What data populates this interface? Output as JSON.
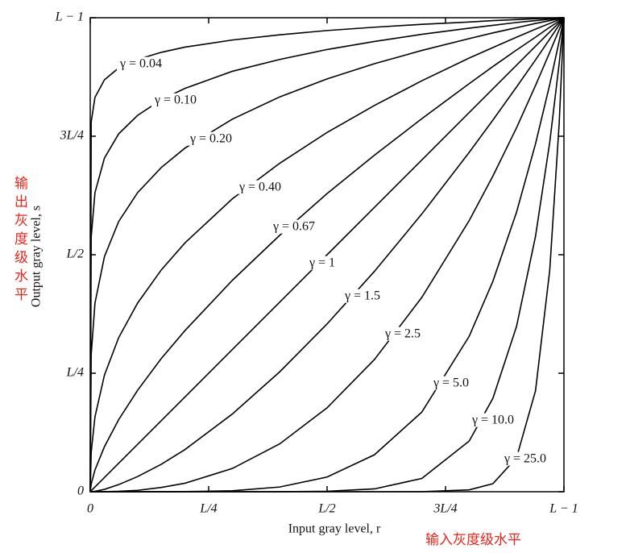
{
  "chart_data": {
    "type": "line",
    "xlabel": "Input gray level, r",
    "ylabel": "Output gray level, s",
    "annotations": [
      "输出灰度级水平",
      "输入灰度级水平"
    ],
    "annotation_color": "#e8251b",
    "xlim": [
      0,
      1
    ],
    "ylim": [
      0,
      1
    ],
    "xticks": [
      0,
      {
        "value": 0.25,
        "label": "L/4"
      },
      {
        "value": 0.5,
        "label": "L/2"
      },
      {
        "value": 0.75,
        "label": "3L/4"
      },
      {
        "value": 1,
        "label": "L − 1"
      }
    ],
    "yticks": [
      0,
      {
        "value": 0.25,
        "label": "L/4"
      },
      {
        "value": 0.5,
        "label": "L/2"
      },
      {
        "value": 0.75,
        "label": "3L/4"
      },
      {
        "value": 1,
        "label": "L − 1"
      }
    ],
    "grid": false,
    "x": [
      0,
      0.002,
      0.01,
      0.03,
      0.06,
      0.1,
      0.15,
      0.2,
      0.3,
      0.4,
      0.5,
      0.6,
      0.7,
      0.8,
      0.85,
      0.9,
      0.94,
      0.97,
      0.99,
      1
    ],
    "series": [
      {
        "name": "γ = 0.04",
        "color": "#000000",
        "values": [
          0,
          0.78,
          0.832,
          0.869,
          0.894,
          0.912,
          0.927,
          0.938,
          0.953,
          0.964,
          0.973,
          0.98,
          0.986,
          0.991,
          0.994,
          0.996,
          0.998,
          0.999,
          1.0,
          1
        ]
      },
      {
        "name": "γ = 0.10",
        "color": "#000000",
        "values": [
          0,
          0.537,
          0.631,
          0.704,
          0.755,
          0.794,
          0.827,
          0.851,
          0.887,
          0.912,
          0.933,
          0.95,
          0.965,
          0.978,
          0.984,
          0.99,
          0.994,
          0.997,
          0.999,
          1
        ]
      },
      {
        "name": "γ = 0.20",
        "color": "#000000",
        "values": [
          0,
          0.289,
          0.398,
          0.496,
          0.57,
          0.631,
          0.684,
          0.725,
          0.786,
          0.833,
          0.871,
          0.903,
          0.931,
          0.956,
          0.968,
          0.979,
          0.988,
          0.994,
          0.998,
          1
        ]
      },
      {
        "name": "γ = 0.40",
        "color": "#000000",
        "values": [
          0,
          0.083,
          0.158,
          0.246,
          0.325,
          0.398,
          0.468,
          0.525,
          0.618,
          0.693,
          0.758,
          0.815,
          0.867,
          0.915,
          0.937,
          0.959,
          0.976,
          0.988,
          0.996,
          1
        ]
      },
      {
        "name": "γ = 0.67",
        "color": "#000000",
        "values": [
          0,
          0.016,
          0.046,
          0.095,
          0.152,
          0.214,
          0.281,
          0.34,
          0.446,
          0.541,
          0.629,
          0.71,
          0.787,
          0.861,
          0.897,
          0.932,
          0.959,
          0.98,
          0.993,
          1
        ]
      },
      {
        "name": "γ = 1",
        "color": "#000000",
        "values": [
          0,
          0.002,
          0.01,
          0.03,
          0.06,
          0.1,
          0.15,
          0.2,
          0.3,
          0.4,
          0.5,
          0.6,
          0.7,
          0.8,
          0.85,
          0.9,
          0.94,
          0.97,
          0.99,
          1
        ]
      },
      {
        "name": "γ = 1.5",
        "color": "#000000",
        "values": [
          0,
          0.0,
          0.001,
          0.005,
          0.015,
          0.032,
          0.058,
          0.089,
          0.164,
          0.253,
          0.354,
          0.465,
          0.586,
          0.716,
          0.784,
          0.854,
          0.911,
          0.955,
          0.985,
          1
        ]
      },
      {
        "name": "γ = 2.5",
        "color": "#000000",
        "values": [
          0,
          0,
          0,
          0.0002,
          0.0009,
          0.003,
          0.009,
          0.018,
          0.049,
          0.101,
          0.177,
          0.279,
          0.41,
          0.572,
          0.666,
          0.768,
          0.857,
          0.927,
          0.975,
          1
        ]
      },
      {
        "name": "γ = 5.0",
        "color": "#000000",
        "values": [
          0,
          0,
          0,
          0,
          0,
          0,
          0.0001,
          0.0003,
          0.002,
          0.01,
          0.031,
          0.078,
          0.168,
          0.328,
          0.444,
          0.59,
          0.734,
          0.859,
          0.951,
          1
        ]
      },
      {
        "name": "γ = 10.0",
        "color": "#000000",
        "values": [
          0,
          0,
          0,
          0,
          0,
          0,
          0,
          0,
          0,
          0.0001,
          0.001,
          0.006,
          0.028,
          0.107,
          0.197,
          0.349,
          0.539,
          0.737,
          0.904,
          1
        ]
      },
      {
        "name": "γ = 25.0",
        "color": "#000000",
        "values": [
          0,
          0,
          0,
          0,
          0,
          0,
          0,
          0,
          0,
          0,
          0,
          0,
          0.0001,
          0.004,
          0.017,
          0.072,
          0.213,
          0.467,
          0.778,
          1
        ]
      }
    ]
  }
}
